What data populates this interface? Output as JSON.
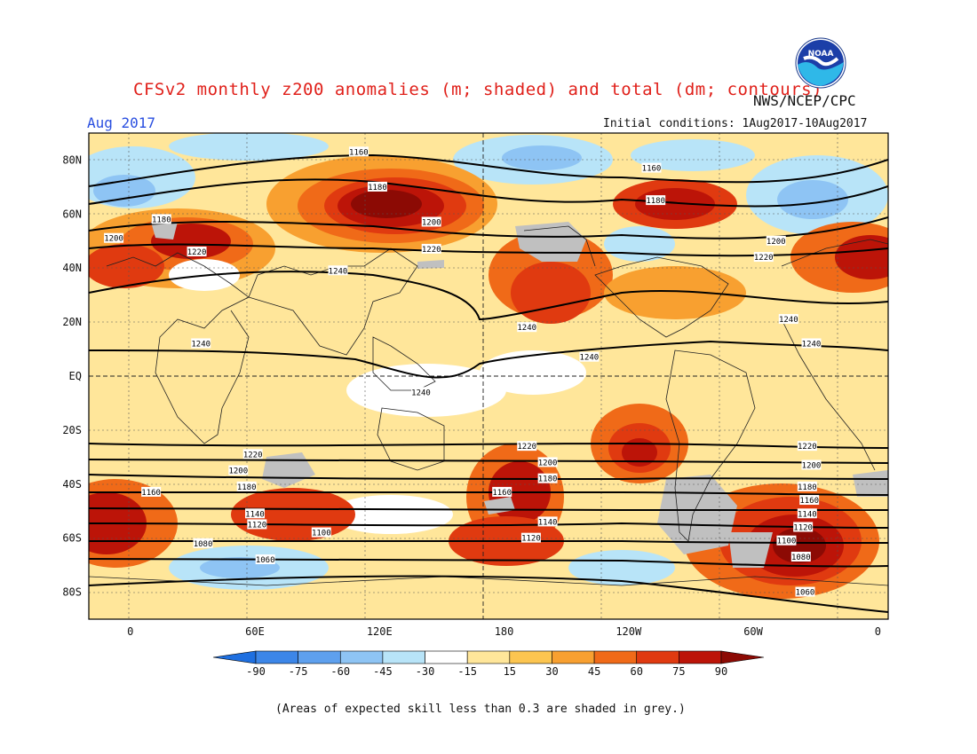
{
  "header": {
    "title": "CFSv2 monthly z200 anomalies (m; shaded) and total (dm; contours)",
    "org": "NWS/NCEP/CPC",
    "month": "Aug 2017",
    "initial_conditions": "Initial conditions: 1Aug2017-10Aug2017",
    "logo_text": "NOAA"
  },
  "map": {
    "lat_labels": [
      "80N",
      "60N",
      "40N",
      "20N",
      "EQ",
      "20S",
      "40S",
      "60S",
      "80S"
    ],
    "lat_values": [
      80,
      60,
      40,
      20,
      0,
      -20,
      -40,
      -60,
      -80
    ],
    "lon_labels": [
      "0",
      "60E",
      "120E",
      "180",
      "120W",
      "60W",
      "0"
    ],
    "lon_values": [
      0,
      60,
      120,
      180,
      240,
      300,
      360
    ],
    "lon_range": [
      -20,
      365
    ],
    "lat_range": [
      -90,
      90
    ],
    "contour_labels": [
      {
        "text": "1160",
        "lon": 110,
        "lat": 83
      },
      {
        "text": "1180",
        "lon": 119,
        "lat": 70
      },
      {
        "text": "1200",
        "lon": 145,
        "lat": 57
      },
      {
        "text": "1220",
        "lon": 145,
        "lat": 47
      },
      {
        "text": "1240",
        "lon": 100,
        "lat": 39
      },
      {
        "text": "1180",
        "lon": 15,
        "lat": 58
      },
      {
        "text": "1200",
        "lon": -8,
        "lat": 51
      },
      {
        "text": "1220",
        "lon": 32,
        "lat": 46
      },
      {
        "text": "1160",
        "lon": 251,
        "lat": 77
      },
      {
        "text": "1180",
        "lon": 253,
        "lat": 65
      },
      {
        "text": "1200",
        "lon": 311,
        "lat": 50
      },
      {
        "text": "1220",
        "lon": 305,
        "lat": 44
      },
      {
        "text": "1240",
        "lon": 191,
        "lat": 18
      },
      {
        "text": "1240",
        "lon": 317,
        "lat": 21
      },
      {
        "text": "1240",
        "lon": 34,
        "lat": 12
      },
      {
        "text": "1240",
        "lon": 221,
        "lat": 7
      },
      {
        "text": "1240",
        "lon": 328,
        "lat": 12
      },
      {
        "text": "1240",
        "lon": 140,
        "lat": -6
      },
      {
        "text": "1220",
        "lon": 59,
        "lat": -29
      },
      {
        "text": "1200",
        "lon": 52,
        "lat": -35
      },
      {
        "text": "1180",
        "lon": 56,
        "lat": -41
      },
      {
        "text": "1160",
        "lon": 10,
        "lat": -43
      },
      {
        "text": "1140",
        "lon": 60,
        "lat": -51
      },
      {
        "text": "1120",
        "lon": 61,
        "lat": -55
      },
      {
        "text": "1100",
        "lon": 92,
        "lat": -58
      },
      {
        "text": "1080",
        "lon": 35,
        "lat": -62
      },
      {
        "text": "1060",
        "lon": 65,
        "lat": -68
      },
      {
        "text": "1220",
        "lon": 191,
        "lat": -26
      },
      {
        "text": "1200",
        "lon": 201,
        "lat": -32
      },
      {
        "text": "1180",
        "lon": 201,
        "lat": -38
      },
      {
        "text": "1160",
        "lon": 179,
        "lat": -43
      },
      {
        "text": "1140",
        "lon": 201,
        "lat": -54
      },
      {
        "text": "1120",
        "lon": 193,
        "lat": -60
      },
      {
        "text": "1220",
        "lon": 326,
        "lat": -26
      },
      {
        "text": "1200",
        "lon": 328,
        "lat": -33
      },
      {
        "text": "1180",
        "lon": 326,
        "lat": -41
      },
      {
        "text": "1160",
        "lon": 327,
        "lat": -46
      },
      {
        "text": "1140",
        "lon": 326,
        "lat": -51
      },
      {
        "text": "1120",
        "lon": 324,
        "lat": -56
      },
      {
        "text": "1100",
        "lon": 316,
        "lat": -61
      },
      {
        "text": "1080",
        "lon": 323,
        "lat": -67
      },
      {
        "text": "1060",
        "lon": 325,
        "lat": -80
      }
    ]
  },
  "colorbar": {
    "ticks": [
      "-90",
      "-75",
      "-60",
      "-45",
      "-30",
      "-15",
      "15",
      "30",
      "45",
      "60",
      "75",
      "90"
    ],
    "colors": [
      "#1e6fe0",
      "#3c86e8",
      "#5ea0ee",
      "#8ec4f4",
      "#b8e4f8",
      "#ffffff",
      "#ffe69a",
      "#fcc550",
      "#f8a030",
      "#f06a18",
      "#e03a10",
      "#bc1408",
      "#8c0a04"
    ]
  },
  "footnote": "(Areas of expected skill less than 0.3 are shaded in grey.)"
}
